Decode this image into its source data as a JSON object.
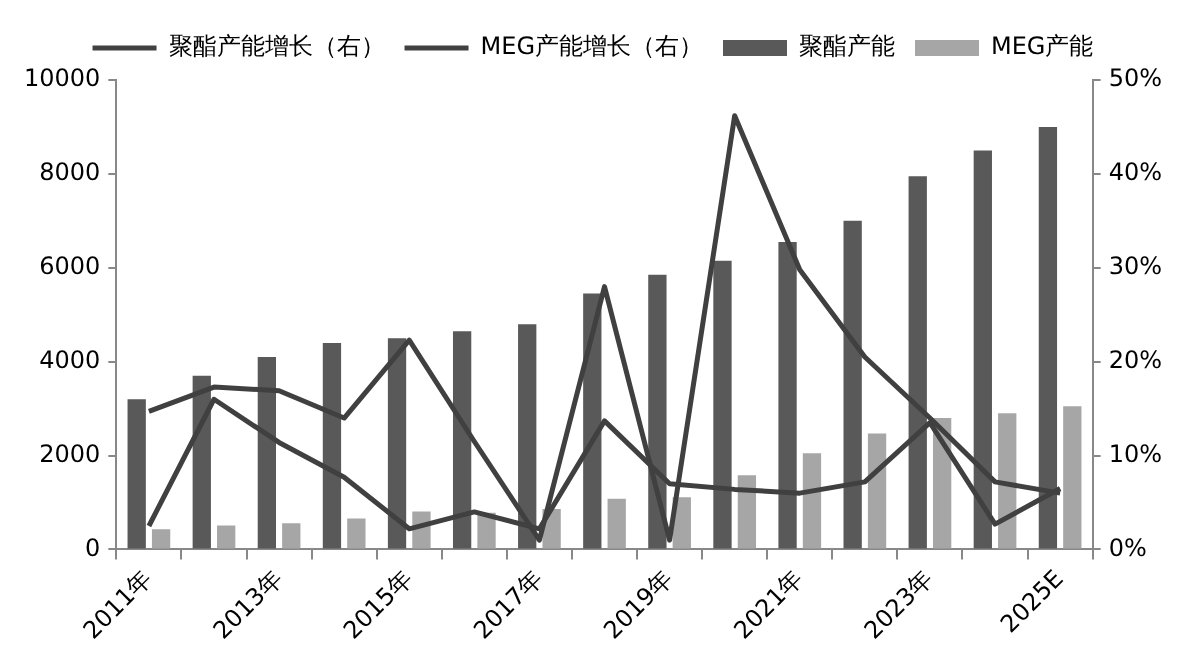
{
  "chart_data": {
    "type": "bar",
    "categories": [
      "2011年",
      null,
      "2013年",
      null,
      "2015年",
      null,
      "2017年",
      null,
      "2019年",
      null,
      "2021年",
      null,
      "2023年",
      null,
      "2025E"
    ],
    "series": [
      {
        "name": "聚酯产能",
        "color": "#595959",
        "values": [
          3200,
          3700,
          4100,
          4400,
          4500,
          4650,
          4800,
          5450,
          5850,
          6150,
          6550,
          7000,
          7950,
          8500,
          9000
        ]
      },
      {
        "name": "MEG产能",
        "color": "#a6a6a6",
        "values": [
          430,
          510,
          560,
          660,
          810,
          780,
          860,
          1080,
          1110,
          1580,
          2050,
          2470,
          2800,
          2900,
          3050
        ]
      },
      {
        "name": "聚酯产能增长（右）",
        "type": "line",
        "axis": "y2",
        "color": "#404040",
        "values": [
          2.5,
          16,
          11.4,
          7.7,
          2.2,
          4,
          2.2,
          13.7,
          7,
          6.4,
          6,
          7.2,
          13.5,
          2.7,
          6.5
        ]
      },
      {
        "name": "MEG产能增长（右）",
        "type": "line",
        "axis": "y2",
        "color": "#404040",
        "values": [
          14.7,
          17.3,
          16.9,
          14,
          22.3,
          11.5,
          1,
          28,
          1,
          46.2,
          29.8,
          20.5,
          14,
          7.2,
          6
        ]
      }
    ],
    "ylim": [
      0,
      10000
    ],
    "yticks": [
      0,
      2000,
      4000,
      6000,
      8000,
      10000
    ],
    "y2lim": [
      0,
      50
    ],
    "y2ticks": [
      {
        "value": 0,
        "label": "0%"
      },
      {
        "value": 10,
        "label": "10%"
      },
      {
        "value": 20,
        "label": "20%"
      },
      {
        "value": 30,
        "label": "30%"
      },
      {
        "value": 40,
        "label": "40%"
      },
      {
        "value": 50,
        "label": "50%"
      }
    ],
    "legend": "top",
    "grid": false,
    "marker": "none",
    "line_style": "solid"
  }
}
